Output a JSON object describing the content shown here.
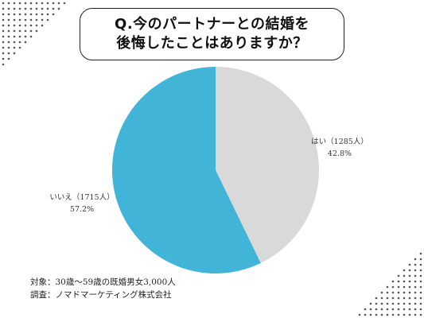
{
  "header": {
    "title_line1": "Q.今のパートナーとの結婚を",
    "title_line2": "後悔したことはありますか？"
  },
  "chart_data": {
    "type": "pie",
    "slices": [
      {
        "label": "はい（1285人）",
        "percent_label": "42.8%",
        "count": 1285,
        "value": 42.8,
        "color": "#d9d9d9"
      },
      {
        "label": "いいえ（1715人）",
        "percent_label": "57.2%",
        "count": 1715,
        "value": 57.2,
        "color": "#41b4d8"
      }
    ],
    "start_angle": "12 o'clock",
    "direction": "clockwise"
  },
  "footer": {
    "target": "対象：30歳〜59歳の既婚男女3,000人",
    "survey": "調査：ノマドマーケティング株式会社"
  },
  "colors": {
    "dots": "#555555",
    "border": "#222222"
  }
}
